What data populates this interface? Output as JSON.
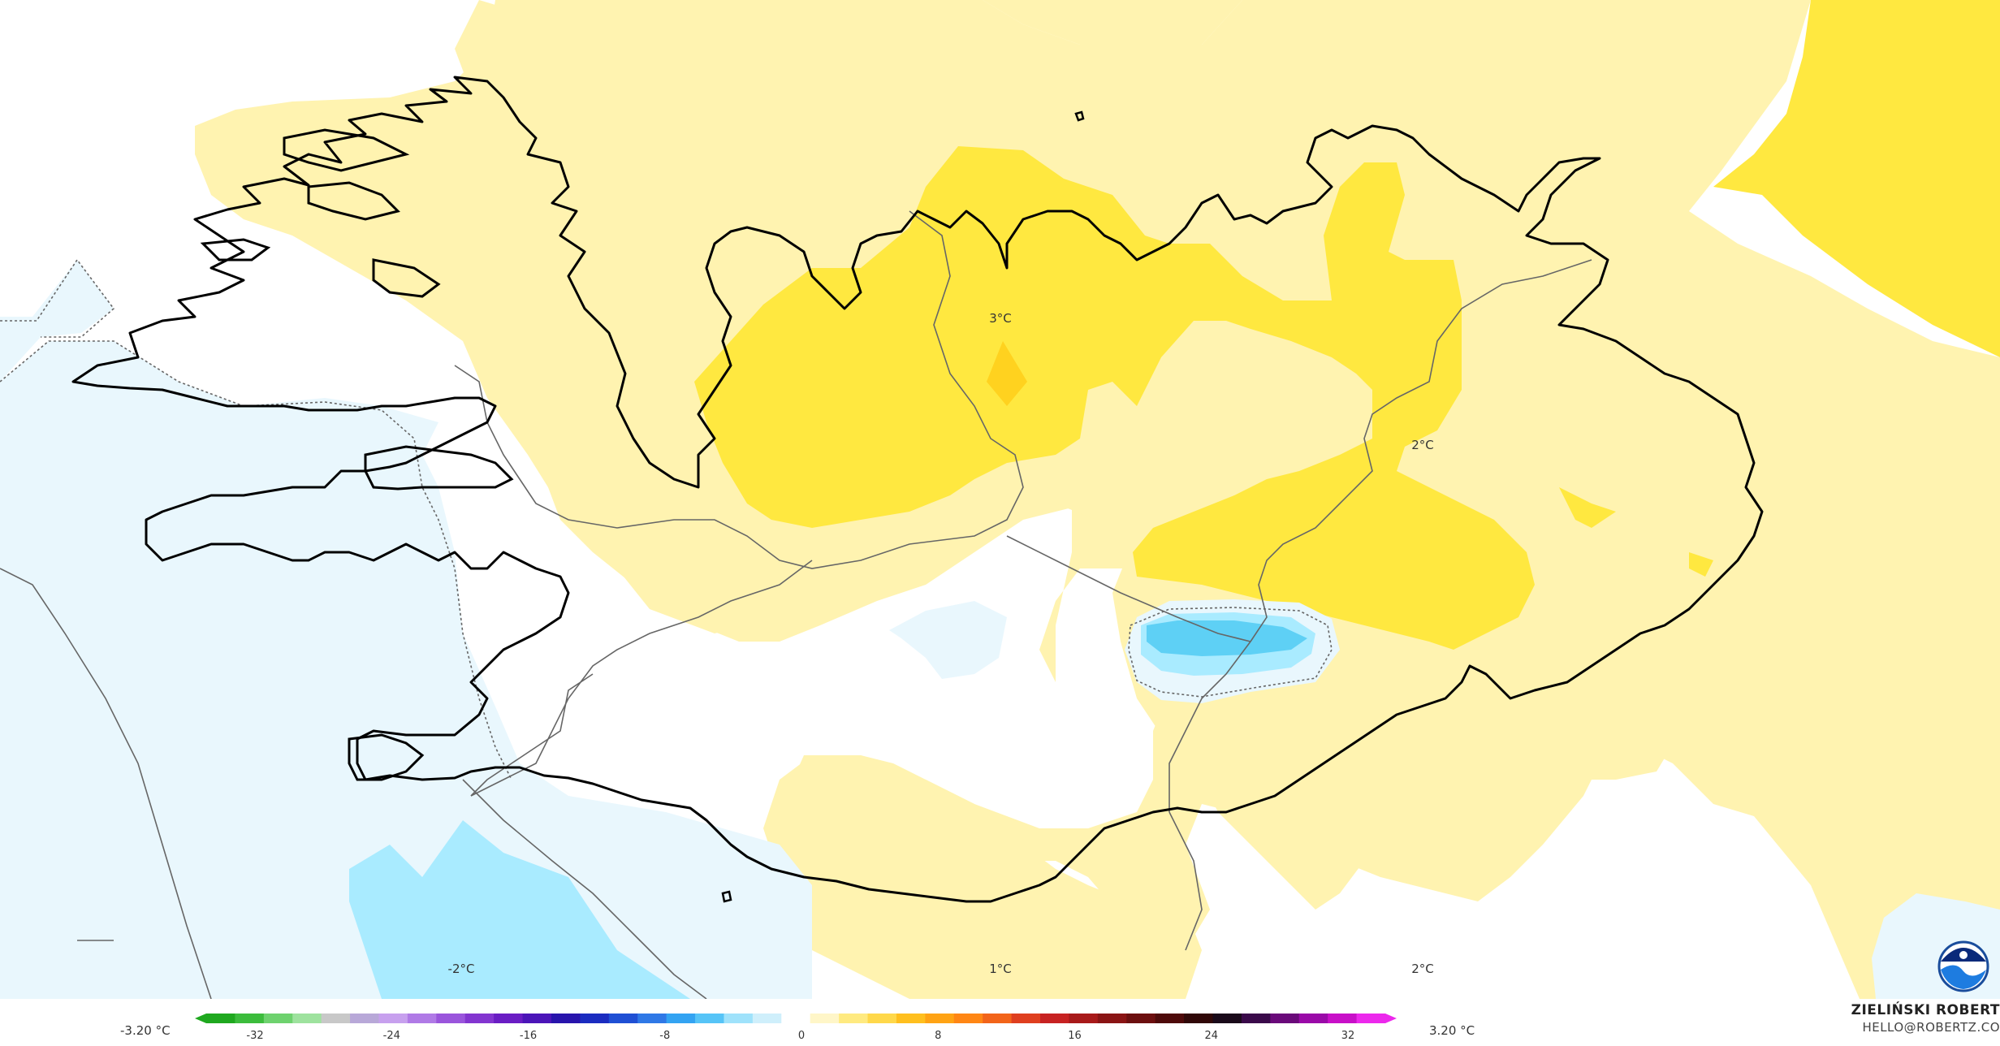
{
  "map": {
    "contour_labels": [
      {
        "id": "west-minus2",
        "text": "-2°C"
      },
      {
        "id": "south-1",
        "text": "1°C"
      },
      {
        "id": "southeast-2",
        "text": "2°C"
      },
      {
        "id": "north-3",
        "text": "3°C"
      },
      {
        "id": "east-2",
        "text": "2°C"
      }
    ],
    "colors": {
      "zero_band": "#ffffff",
      "light_yellow": "#fff3b0",
      "yellow": "#ffe840",
      "orange_yellow": "#ffd21f",
      "light_blue": "#e9f7fd",
      "blue": "#a9ebff",
      "deep_blue": "#5ed0f5",
      "coast": "#000000",
      "border": "#666666"
    },
    "logo": "noaa-logo"
  },
  "legend": {
    "min_label": "-3.20 °C",
    "max_label": "3.20 °C",
    "ticks": [
      "-32",
      "-24",
      "-16",
      "-8",
      "0",
      "8",
      "16",
      "24",
      "32"
    ],
    "colors": [
      "#1fa81f",
      "#3cbc3c",
      "#6ed26e",
      "#9ee29e",
      "#c8c8c8",
      "#b8a8d8",
      "#c7a0ee",
      "#b07ae6",
      "#9a55dc",
      "#8335d0",
      "#6a1dc4",
      "#4b15b8",
      "#2814ac",
      "#1b2cc0",
      "#1f4fd4",
      "#2f78e6",
      "#33a3f2",
      "#56c4f7",
      "#9fe2fb",
      "#cfeffb",
      "#ffffff",
      "#fff6c8",
      "#ffea80",
      "#ffd84a",
      "#ffbf1e",
      "#ffa314",
      "#ff8614",
      "#f2641a",
      "#df3f1f",
      "#c72222",
      "#a81a1a",
      "#8a1414",
      "#6c0f0f",
      "#4e0a0a",
      "#300808",
      "#1a0a1a",
      "#3a0a4a",
      "#6a0a7a",
      "#9a0aa8",
      "#c810c8",
      "#ec28ec"
    ]
  },
  "credit": {
    "name": "ZIELIŃSKI ROBERT",
    "email": "HELLO@ROBERTZ.CO"
  }
}
